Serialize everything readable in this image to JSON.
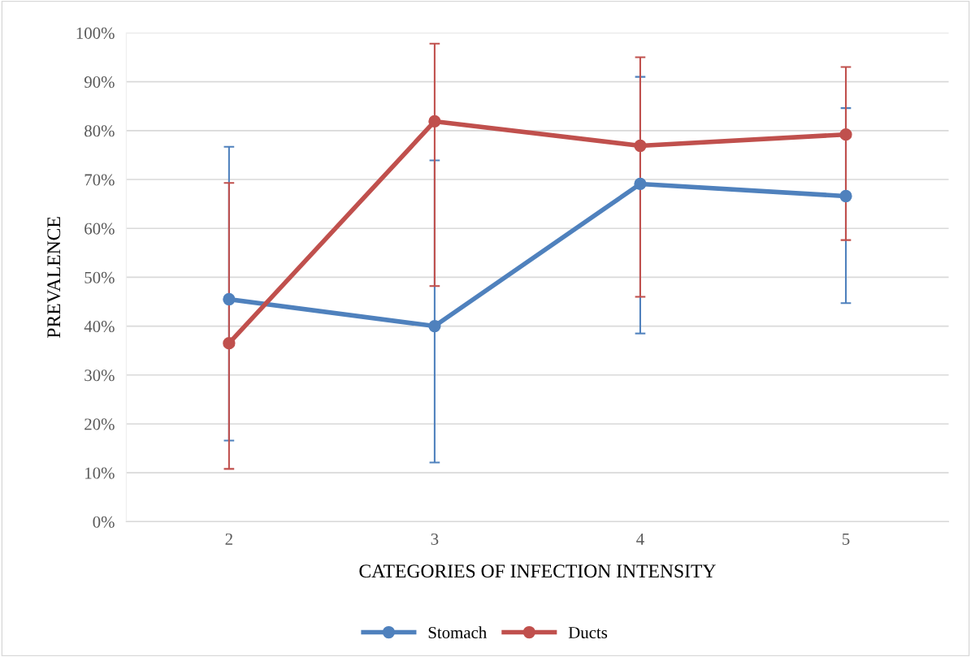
{
  "chart_data": {
    "type": "line",
    "xlabel": "CATEGORIES OF INFECTION INTENSITY",
    "ylabel": "PREVALENCE",
    "categories": [
      "2",
      "3",
      "4",
      "5"
    ],
    "series": [
      {
        "name": "Stomach",
        "color": "#4f81bd",
        "values": [
          45.5,
          40.0,
          69.1,
          66.6
        ],
        "errors": [
          [
            16.6,
            76.7
          ],
          [
            12.1,
            73.9
          ],
          [
            38.5,
            91.0
          ],
          [
            44.7,
            84.6
          ]
        ]
      },
      {
        "name": "Ducts",
        "color": "#c0504d",
        "values": [
          36.5,
          81.9,
          76.9,
          79.2
        ],
        "errors": [
          [
            10.8,
            69.3
          ],
          [
            48.2,
            97.8
          ],
          [
            46.0,
            95.0
          ],
          [
            57.6,
            93.0
          ]
        ]
      }
    ],
    "ylim": [
      0,
      100
    ],
    "yticks": [
      {
        "value": 0,
        "label": "0%"
      },
      {
        "value": 10,
        "label": "10%"
      },
      {
        "value": 20,
        "label": "20%"
      },
      {
        "value": 30,
        "label": "30%"
      },
      {
        "value": 40,
        "label": "40%"
      },
      {
        "value": 50,
        "label": "50%"
      },
      {
        "value": 60,
        "label": "60%"
      },
      {
        "value": 70,
        "label": "70%"
      },
      {
        "value": 80,
        "label": "80%"
      },
      {
        "value": 90,
        "label": "90%"
      },
      {
        "value": 100,
        "label": "100%"
      }
    ],
    "grid": "y",
    "legend": "bottom",
    "marker": "circle",
    "line_style": "solid"
  }
}
